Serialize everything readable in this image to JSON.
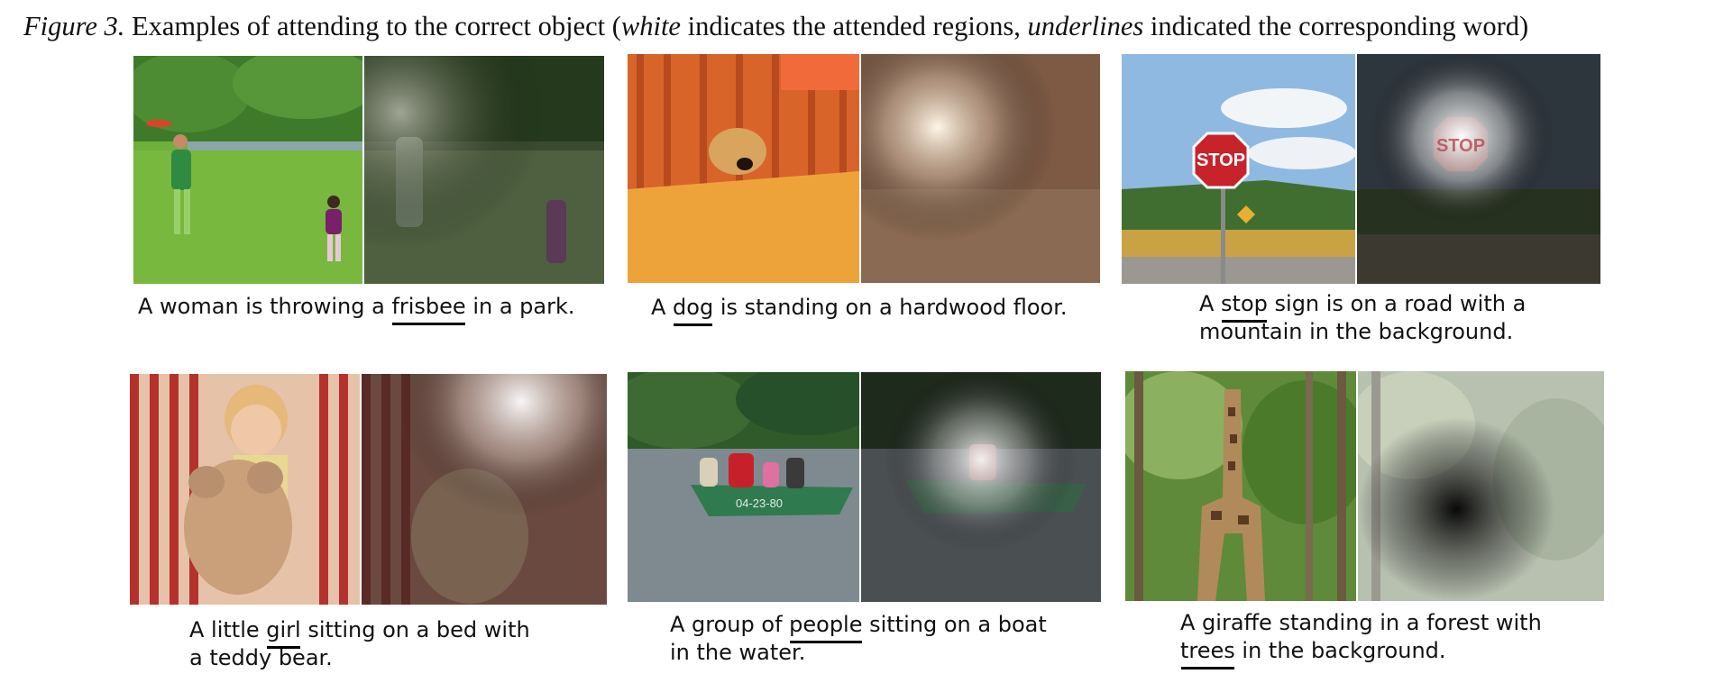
{
  "figure": {
    "label": "Figure 3.",
    "part1": " Examples of attending to the correct object (",
    "white": "white",
    "part2": " indicates the attended regions, ",
    "underlines": "underlines",
    "part3": " indicated the corresponding word)"
  },
  "examples": [
    {
      "pre": "A woman is throwing a ",
      "word": "frisbee",
      "post": " in a park."
    },
    {
      "pre": "A ",
      "word": "dog",
      "post": " is standing on a hardwood floor."
    },
    {
      "pre1": "A ",
      "word": "stop",
      "post1": " sign is on a road with a",
      "line2": "mountain in the background."
    },
    {
      "pre1": "A little ",
      "word": "girl",
      "post1": " sitting on a bed with",
      "line2": "a teddy bear."
    },
    {
      "pre1": "A group of ",
      "word": "people",
      "post1": " sitting on a boat",
      "line2": "in the water."
    },
    {
      "line1": "A giraffe standing in a forest with",
      "word": "trees",
      "post2": " in the background."
    }
  ],
  "sign_text": "STOP",
  "boat_text": "04-23-80",
  "colors": {
    "grass": "#6fb03a",
    "trees": "#3f7a2a",
    "floor": "#e8901c",
    "bedskirt": "#d8642a",
    "sky": "#8fb9e0",
    "water": "#7f8a90",
    "boat": "#2f7a4e",
    "stripe": "#b5322c",
    "forest": "#5f8a3a"
  }
}
